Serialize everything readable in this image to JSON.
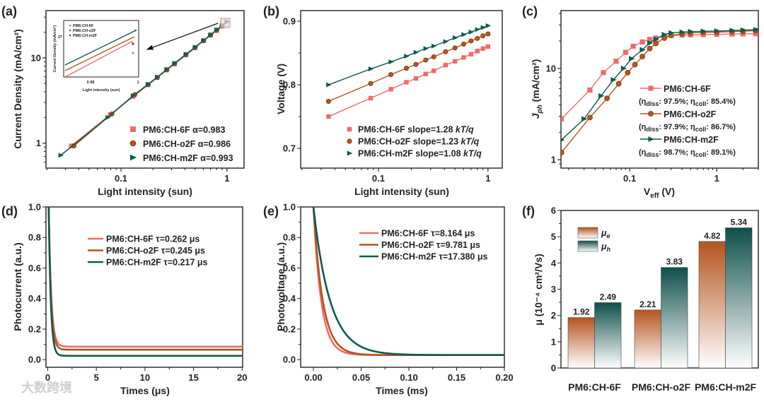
{
  "colors": {
    "ch6f": "#f06a6a",
    "cho2f": "#b5541e",
    "chm2f": "#0e5a50"
  },
  "watermark": "大数跨境",
  "chart_data": [
    {
      "panel": "(a)",
      "type": "scatter",
      "xscale": "log",
      "yscale": "log",
      "xlabel": "Light intensity (sun)",
      "ylabel": "Current Density (mA/cm²)",
      "xlim": [
        0.0196,
        1.45
      ],
      "ylim": [
        0.51,
        35.8
      ],
      "xticks": [
        0.1,
        1
      ],
      "xtick_labels": [
        "0.1",
        "1"
      ],
      "yticks": [
        1,
        10
      ],
      "ytick_labels": [
        "1",
        "10"
      ],
      "legend_position": "bottom-right",
      "series": [
        {
          "name": "PM6:CH-6F α=0.983",
          "marker": "square",
          "color": "#f06a6a",
          "x": [
            0.034,
            0.079,
            0.13,
            0.18,
            0.22,
            0.27,
            0.32,
            0.41,
            0.5,
            0.6,
            0.7,
            0.8,
            0.9
          ],
          "y": [
            0.93,
            2.16,
            3.51,
            4.83,
            5.88,
            7.19,
            8.49,
            10.8,
            13.1,
            15.8,
            18.4,
            20.9,
            23.5
          ]
        },
        {
          "name": "PM6:CH-o2F α=0.986",
          "marker": "circle",
          "color": "#b5541e",
          "x": [
            0.036,
            0.082,
            0.135,
            0.18,
            0.22,
            0.27,
            0.32,
            0.41,
            0.5,
            0.6,
            0.7,
            0.8,
            0.9
          ],
          "y": [
            0.93,
            2.2,
            3.7,
            4.85,
            5.9,
            7.25,
            8.55,
            10.9,
            13.2,
            15.9,
            18.5,
            21.1,
            23.7
          ]
        },
        {
          "name": "PM6:CH-m2F α=0.993",
          "marker": "triangle",
          "color": "#0e5a50",
          "x": [
            0.027,
            0.075,
            0.13,
            0.18,
            0.22,
            0.27,
            0.32,
            0.41,
            0.5,
            0.6,
            0.7,
            0.8,
            0.9,
            1.0
          ],
          "y": [
            0.72,
            2.0,
            3.6,
            4.9,
            5.95,
            7.3,
            8.6,
            11.0,
            13.3,
            16.0,
            18.7,
            21.3,
            24.0,
            26.5
          ]
        }
      ],
      "inset": {
        "xlabel": "Light intensity (sun)",
        "ylabel": "Current Density (mA/cm²)",
        "xtick_labels": [
          "0.98",
          "1"
        ],
        "ytick_labels": [
          "27"
        ],
        "legend": [
          "PM6:CH-6F",
          "PM6:CH-o2F",
          "PM6:CH-m2F"
        ]
      }
    },
    {
      "panel": "(b)",
      "type": "scatter",
      "xscale": "log",
      "yscale": "linear",
      "xlabel": "Light intensity (sun)",
      "ylabel": "Voltage (V)",
      "xlim": [
        0.0195,
        1.35
      ],
      "ylim": [
        0.669,
        0.9167
      ],
      "xticks": [
        0.1,
        1
      ],
      "xtick_labels": [
        "0.1",
        "1"
      ],
      "yticks": [
        0.7,
        0.8,
        0.9
      ],
      "ytick_labels": [
        "0.7",
        "0.8",
        "0.9"
      ],
      "legend_position": "bottom-right",
      "series": [
        {
          "name": "PM6:CH-6F slope=1.28 ",
          "unit": "kT/q",
          "marker": "square",
          "color": "#f06a6a",
          "x": [
            0.035,
            0.085,
            0.13,
            0.18,
            0.22,
            0.27,
            0.32,
            0.41,
            0.5,
            0.6,
            0.7,
            0.8,
            0.9,
            1.0
          ],
          "y": [
            0.75,
            0.779,
            0.793,
            0.804,
            0.81,
            0.817,
            0.822,
            0.831,
            0.837,
            0.843,
            0.848,
            0.853,
            0.857,
            0.86
          ]
        },
        {
          "name": "PM6:CH-o2F slope=1.23 ",
          "unit": "kT/q",
          "marker": "circle",
          "color": "#b5541e",
          "x": [
            0.035,
            0.085,
            0.13,
            0.18,
            0.22,
            0.27,
            0.32,
            0.41,
            0.5,
            0.6,
            0.7,
            0.8,
            0.9,
            1.0
          ],
          "y": [
            0.774,
            0.802,
            0.816,
            0.826,
            0.832,
            0.839,
            0.844,
            0.852,
            0.858,
            0.864,
            0.869,
            0.873,
            0.877,
            0.88
          ]
        },
        {
          "name": "PM6:CH-m2F slope=1.08 ",
          "unit": "kT/q",
          "marker": "triangle",
          "color": "#0e5a50",
          "x": [
            0.035,
            0.085,
            0.13,
            0.18,
            0.22,
            0.27,
            0.32,
            0.41,
            0.5,
            0.6,
            0.7,
            0.8,
            0.9,
            1.0
          ],
          "y": [
            0.8,
            0.825,
            0.836,
            0.845,
            0.851,
            0.857,
            0.861,
            0.868,
            0.874,
            0.879,
            0.883,
            0.887,
            0.89,
            0.893
          ]
        }
      ]
    },
    {
      "panel": "(c)",
      "type": "line",
      "xscale": "log",
      "yscale": "log",
      "xlabel_main": "V",
      "xlabel_sub": "eff",
      "xlabel_rest": " (V)",
      "ylabel_main": "J",
      "ylabel_sub": "ph",
      "ylabel_rest": " (mA/cm²)",
      "xlim": [
        0.0163,
        3.0
      ],
      "ylim": [
        0.81,
        43
      ],
      "xticks": [
        0.1,
        1
      ],
      "xtick_labels": [
        "0.1",
        "1"
      ],
      "yticks": [
        1,
        10
      ],
      "ytick_labels": [
        "1",
        "10"
      ],
      "legend_position": "bottom-right",
      "series": [
        {
          "name": "PM6:CH-6F",
          "marker": "square",
          "color": "#f06a6a",
          "eta": [
            "(η",
            "diss",
            ": 97.5%; η",
            "coll",
            ": 85.4%)"
          ],
          "x": [
            0.0165,
            0.035,
            0.05,
            0.07,
            0.09,
            0.11,
            0.14,
            0.17,
            0.2,
            0.25,
            0.3,
            0.4,
            0.5,
            0.7,
            1,
            1.5,
            2,
            2.8
          ],
          "y": [
            2.8,
            5.8,
            9,
            12,
            15,
            17.5,
            19.5,
            20.8,
            21.5,
            22.5,
            23,
            23.2,
            23.3,
            23.5,
            23.6,
            23.8,
            23.9,
            24
          ]
        },
        {
          "name": "PM6:CH-o2F",
          "marker": "circle",
          "color": "#b5541e",
          "eta": [
            "(η",
            "diss",
            ": 97.9%; η",
            "coll",
            ": 86.7%)"
          ],
          "x": [
            0.0165,
            0.035,
            0.055,
            0.075,
            0.095,
            0.115,
            0.14,
            0.17,
            0.2,
            0.25,
            0.3,
            0.4,
            0.5,
            0.7,
            1,
            1.5,
            2,
            2.8
          ],
          "y": [
            1.2,
            2.9,
            4.7,
            6.8,
            9,
            11,
            13.5,
            16.5,
            18.8,
            21.5,
            23,
            24,
            24.5,
            24.8,
            25,
            25.3,
            25.6,
            26
          ]
        },
        {
          "name": "PM6:CH-m2F",
          "marker": "triangle",
          "color": "#0e5a50",
          "eta": [
            "(η",
            "diss",
            ": 98.7%; η",
            "coll",
            ": 89.1%)"
          ],
          "x": [
            0.0165,
            0.03,
            0.047,
            0.065,
            0.085,
            0.105,
            0.14,
            0.17,
            0.2,
            0.25,
            0.3,
            0.4,
            0.5,
            0.7,
            1,
            1.5,
            2,
            2.8
          ],
          "y": [
            1.65,
            2.8,
            5,
            7.5,
            10,
            12.8,
            16,
            19,
            21,
            23.5,
            24.5,
            25,
            25.3,
            25.5,
            25.7,
            26,
            26.3,
            26.5
          ]
        }
      ]
    },
    {
      "panel": "(d)",
      "type": "line",
      "xscale": "linear",
      "yscale": "linear",
      "xlabel": "Times (μs)",
      "ylabel": "Photocurrent (a.u.)",
      "xlim": [
        -0.18,
        20.05
      ],
      "ylim": [
        -0.05,
        1.0
      ],
      "xticks": [
        0,
        5,
        10,
        15,
        20
      ],
      "xtick_labels": [
        "0",
        "5",
        "10",
        "15",
        "20"
      ],
      "yticks": [
        0,
        0.2,
        0.4,
        0.6,
        0.8,
        1.0
      ],
      "ytick_labels": [
        "0.0",
        "0.2",
        "0.4",
        "0.6",
        "0.8",
        "1.0"
      ],
      "legend_position": "top-right",
      "series": [
        {
          "name": "PM6:CH-6F τ=0.262 μs",
          "color": "#f06a6a",
          "tau": 0.262,
          "plateau": 0.085
        },
        {
          "name": "PM6:CH-o2F τ=0.245 μs",
          "color": "#b5541e",
          "tau": 0.245,
          "plateau": 0.065
        },
        {
          "name": "PM6:CH-m2F τ=0.217 μs",
          "color": "#0e5a50",
          "tau": 0.217,
          "plateau": 0.025
        }
      ]
    },
    {
      "panel": "(e)",
      "type": "line",
      "xscale": "linear",
      "yscale": "linear",
      "xlabel": "Times (ms)",
      "ylabel": "Photovoltage (a.u.)",
      "xlim": [
        -0.0134,
        0.2
      ],
      "ylim": [
        -0.05,
        1.0
      ],
      "xticks": [
        0,
        0.05,
        0.1,
        0.15,
        0.2
      ],
      "xtick_labels": [
        "0.00",
        "0.05",
        "0.10",
        "0.15",
        "0.20"
      ],
      "yticks": [
        0,
        0.2,
        0.4,
        0.6,
        0.8,
        1.0
      ],
      "ytick_labels": [
        "0.0",
        "0.2",
        "0.4",
        "0.6",
        "0.8",
        "1.0"
      ],
      "legend_position": "top-right",
      "series": [
        {
          "name": "PM6:CH-6F τ=8.164 μs",
          "color": "#f06a6a",
          "tau": 0.008164,
          "plateau": 0.03
        },
        {
          "name": "PM6:CH-o2F τ=9.781 μs",
          "color": "#b5541e",
          "tau": 0.009781,
          "plateau": 0.03
        },
        {
          "name": "PM6:CH-m2F τ=17.380 μs",
          "color": "#0e5a50",
          "tau": 0.01738,
          "plateau": 0.03
        }
      ]
    },
    {
      "panel": "(f)",
      "type": "bar",
      "ylabel": "μ (10⁻⁴ cm²/Vs)",
      "ylim": [
        0,
        6
      ],
      "yticks": [
        0,
        1,
        2,
        3,
        4,
        5,
        6
      ],
      "ytick_labels": [
        "0",
        "1",
        "2",
        "3",
        "4",
        "5",
        "6"
      ],
      "categories": [
        "PM6:CH-6F",
        "PM6:CH-o2F",
        "PM6:CH-m2F"
      ],
      "legend_position": "top-left",
      "series": [
        {
          "name": "μ",
          "sub": "e",
          "color": "#b5541e",
          "values": [
            1.92,
            2.21,
            4.82
          ],
          "labels": [
            "1.92",
            "2.21",
            "4.82"
          ]
        },
        {
          "name": "μ",
          "sub": "h",
          "color": "#0e4f4a",
          "values": [
            2.49,
            3.83,
            5.34
          ],
          "labels": [
            "2.49",
            "3.83",
            "5.34"
          ]
        }
      ]
    }
  ]
}
